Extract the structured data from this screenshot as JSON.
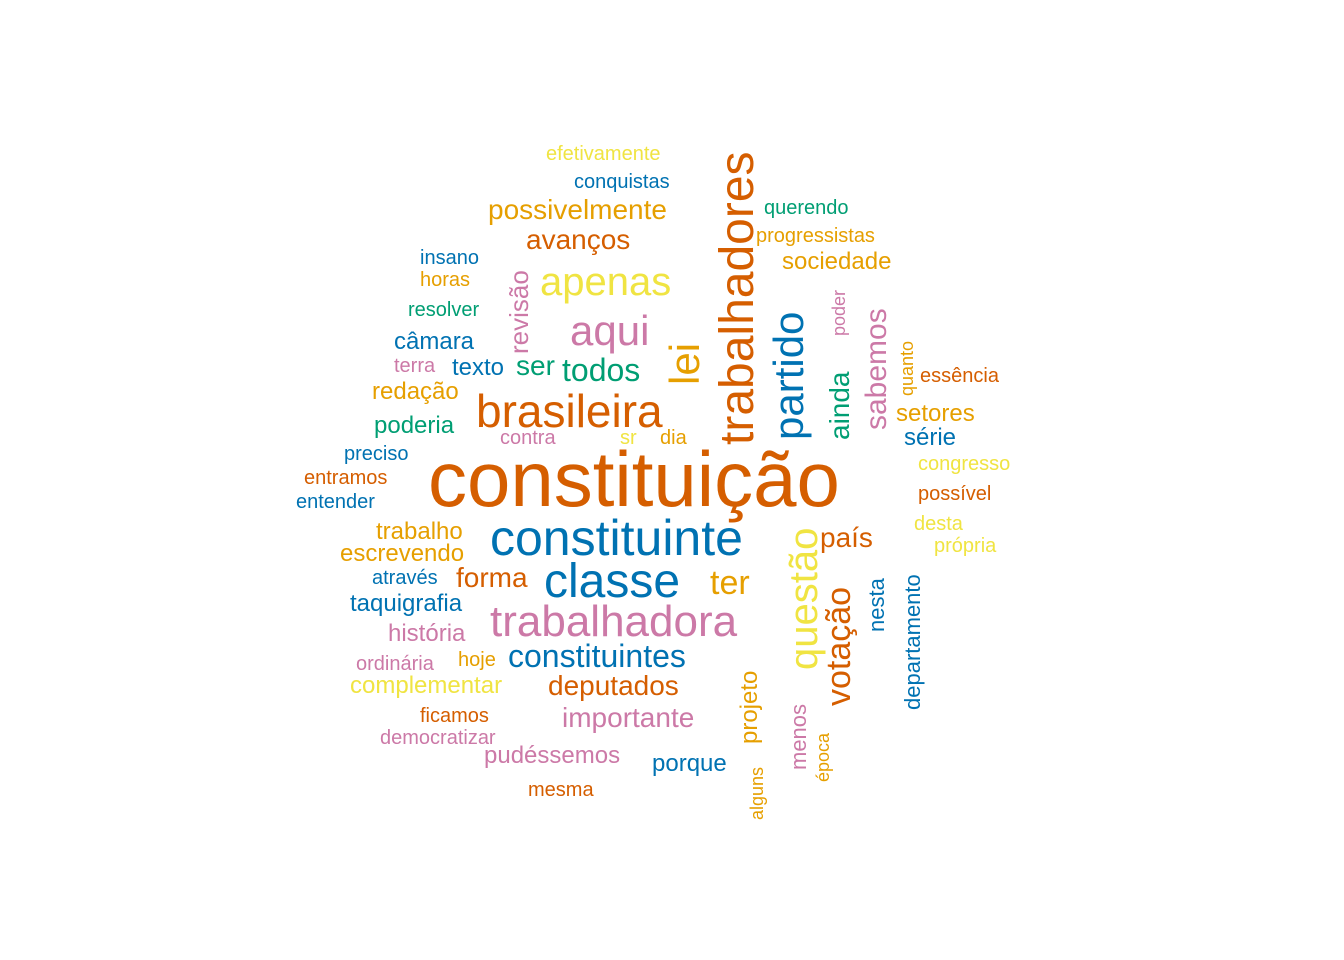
{
  "palette": {
    "orange": "#D55E00",
    "blue": "#0072B2",
    "pink": "#CC79A7",
    "gold": "#E69F00",
    "yellow": "#F0E442",
    "green": "#009E73"
  },
  "words": [
    {
      "text": "constituição",
      "color": "#D55E00",
      "vertical": false
    },
    {
      "text": "trabalhadores",
      "color": "#D55E00",
      "vertical": true
    },
    {
      "text": "constituinte",
      "color": "#0072B2",
      "vertical": false
    },
    {
      "text": "classe",
      "color": "#0072B2",
      "vertical": false
    },
    {
      "text": "trabalhadora",
      "color": "#CC79A7",
      "vertical": false
    },
    {
      "text": "brasileira",
      "color": "#D55E00",
      "vertical": false
    },
    {
      "text": "partido",
      "color": "#0072B2",
      "vertical": true
    },
    {
      "text": "questão",
      "color": "#F0E442",
      "vertical": true
    },
    {
      "text": "apenas",
      "color": "#F0E442",
      "vertical": false
    },
    {
      "text": "aqui",
      "color": "#CC79A7",
      "vertical": false
    },
    {
      "text": "lei",
      "color": "#E69F00",
      "vertical": true
    },
    {
      "text": "votação",
      "color": "#D55E00",
      "vertical": true
    },
    {
      "text": "constituintes",
      "color": "#0072B2",
      "vertical": false
    },
    {
      "text": "todos",
      "color": "#009E73",
      "vertical": false
    },
    {
      "text": "ter",
      "color": "#E69F00",
      "vertical": false
    },
    {
      "text": "sabemos",
      "color": "#CC79A7",
      "vertical": true
    },
    {
      "text": "ainda",
      "color": "#009E73",
      "vertical": true
    },
    {
      "text": "possivelmente",
      "color": "#E69F00",
      "vertical": false
    },
    {
      "text": "importante",
      "color": "#CC79A7",
      "vertical": false
    },
    {
      "text": "deputados",
      "color": "#D55E00",
      "vertical": false
    },
    {
      "text": "forma",
      "color": "#D55E00",
      "vertical": false
    },
    {
      "text": "avanços",
      "color": "#D55E00",
      "vertical": false
    },
    {
      "text": "revisão",
      "color": "#CC79A7",
      "vertical": true
    },
    {
      "text": "projeto",
      "color": "#E69F00",
      "vertical": true
    },
    {
      "text": "país",
      "color": "#D55E00",
      "vertical": false
    },
    {
      "text": "departamento",
      "color": "#0072B2",
      "vertical": true
    },
    {
      "text": "ser",
      "color": "#009E73",
      "vertical": false
    },
    {
      "text": "sociedade",
      "color": "#E69F00",
      "vertical": false
    },
    {
      "text": "setores",
      "color": "#E69F00",
      "vertical": false
    },
    {
      "text": "nesta",
      "color": "#0072B2",
      "vertical": true
    },
    {
      "text": "porque",
      "color": "#0072B2",
      "vertical": false
    },
    {
      "text": "menos",
      "color": "#CC79A7",
      "vertical": true
    },
    {
      "text": "taquigrafia",
      "color": "#0072B2",
      "vertical": false
    },
    {
      "text": "escrevendo",
      "color": "#E69F00",
      "vertical": false
    },
    {
      "text": "complementar",
      "color": "#F0E442",
      "vertical": false
    },
    {
      "text": "pudéssemos",
      "color": "#CC79A7",
      "vertical": false
    },
    {
      "text": "câmara",
      "color": "#0072B2",
      "vertical": false
    },
    {
      "text": "poderia",
      "color": "#009E73",
      "vertical": false
    },
    {
      "text": "história",
      "color": "#CC79A7",
      "vertical": false
    },
    {
      "text": "trabalho",
      "color": "#E69F00",
      "vertical": false
    },
    {
      "text": "redação",
      "color": "#E69F00",
      "vertical": false
    },
    {
      "text": "texto",
      "color": "#0072B2",
      "vertical": false
    },
    {
      "text": "série",
      "color": "#0072B2",
      "vertical": false
    },
    {
      "text": "conquistas",
      "color": "#0072B2",
      "vertical": false
    },
    {
      "text": "querendo",
      "color": "#009E73",
      "vertical": false
    },
    {
      "text": "progressistas",
      "color": "#E69F00",
      "vertical": false
    },
    {
      "text": "efetivamente",
      "color": "#F0E442",
      "vertical": false
    },
    {
      "text": "insano",
      "color": "#0072B2",
      "vertical": false
    },
    {
      "text": "horas",
      "color": "#E69F00",
      "vertical": false
    },
    {
      "text": "resolver",
      "color": "#009E73",
      "vertical": false
    },
    {
      "text": "terra",
      "color": "#CC79A7",
      "vertical": false
    },
    {
      "text": "preciso",
      "color": "#0072B2",
      "vertical": false
    },
    {
      "text": "entramos",
      "color": "#D55E00",
      "vertical": false
    },
    {
      "text": "entender",
      "color": "#0072B2",
      "vertical": false
    },
    {
      "text": "através",
      "color": "#0072B2",
      "vertical": false
    },
    {
      "text": "ordinária",
      "color": "#CC79A7",
      "vertical": false
    },
    {
      "text": "hoje",
      "color": "#E69F00",
      "vertical": false
    },
    {
      "text": "ficamos",
      "color": "#D55E00",
      "vertical": false
    },
    {
      "text": "democratizar",
      "color": "#CC79A7",
      "vertical": false
    },
    {
      "text": "mesma",
      "color": "#D55E00",
      "vertical": false
    },
    {
      "text": "contra",
      "color": "#CC79A7",
      "vertical": false
    },
    {
      "text": "sr",
      "color": "#F0E442",
      "vertical": false
    },
    {
      "text": "dia",
      "color": "#E69F00",
      "vertical": false
    },
    {
      "text": "congresso",
      "color": "#F0E442",
      "vertical": false
    },
    {
      "text": "possível",
      "color": "#D55E00",
      "vertical": false
    },
    {
      "text": "desta",
      "color": "#F0E442",
      "vertical": false
    },
    {
      "text": "própria",
      "color": "#F0E442",
      "vertical": false
    },
    {
      "text": "essência",
      "color": "#D55E00",
      "vertical": false
    },
    {
      "text": "quanto",
      "color": "#E69F00",
      "vertical": true
    },
    {
      "text": "poder",
      "color": "#CC79A7",
      "vertical": true
    },
    {
      "text": "alguns",
      "color": "#E69F00",
      "vertical": true
    },
    {
      "text": "época",
      "color": "#E69F00",
      "vertical": true
    }
  ]
}
